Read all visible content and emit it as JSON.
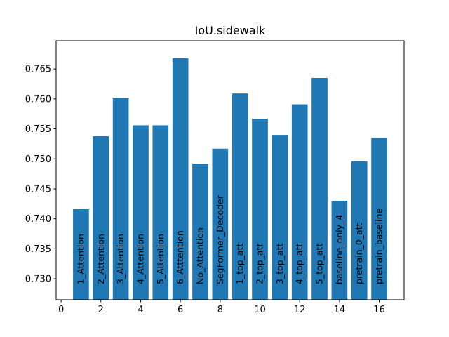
{
  "chart_data": {
    "type": "bar",
    "title": "IoU.sidewalk",
    "xlabel": "",
    "ylabel": "",
    "x": [
      1,
      2,
      3,
      4,
      5,
      6,
      7,
      8,
      9,
      10,
      11,
      12,
      13,
      14,
      15,
      16
    ],
    "categories": [
      "1_Attention",
      "2_Attention",
      "3_Attention",
      "4_Attention",
      "5_Attention",
      "6_Atttention",
      "No_Attention",
      "SegFormer_Decoder",
      "1_top_att",
      "2_top_att",
      "3_top_att",
      "4_top_att",
      "5_top_att",
      "baseline_only_4",
      "pretrain_0_att",
      "pretrain_baseline"
    ],
    "values": [
      0.7416,
      0.7538,
      0.7601,
      0.7556,
      0.7556,
      0.7668,
      0.7492,
      0.7517,
      0.7609,
      0.7567,
      0.754,
      0.7591,
      0.7635,
      0.743,
      0.7496,
      0.7535
    ],
    "xlim": [
      -0.25,
      17.25
    ],
    "ylim": [
      0.7265,
      0.7697
    ],
    "xticks": [
      "0",
      "2",
      "4",
      "6",
      "8",
      "10",
      "12",
      "14",
      "16"
    ],
    "yticks": [
      "0.730",
      "0.735",
      "0.740",
      "0.745",
      "0.750",
      "0.755",
      "0.760",
      "0.765"
    ],
    "bar_color": "#1f77b4",
    "grid": false,
    "legend": "none"
  }
}
